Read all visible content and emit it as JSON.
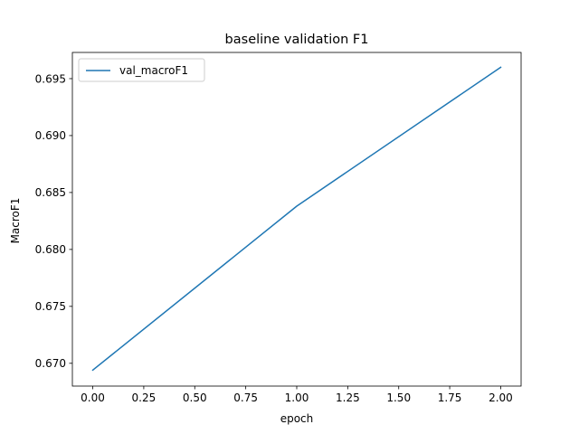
{
  "chart_data": {
    "type": "line",
    "title": "baseline validation F1",
    "xlabel": "epoch",
    "ylabel": "MacroF1",
    "xlim": [
      -0.1,
      2.1
    ],
    "ylim": [
      0.668,
      0.6973
    ],
    "xticks": [
      0.0,
      0.25,
      0.5,
      0.75,
      1.0,
      1.25,
      1.5,
      1.75,
      2.0
    ],
    "xtick_labels": [
      "0.00",
      "0.25",
      "0.50",
      "0.75",
      "1.00",
      "1.25",
      "1.50",
      "1.75",
      "2.00"
    ],
    "yticks": [
      0.67,
      0.675,
      0.68,
      0.685,
      0.69,
      0.695
    ],
    "ytick_labels": [
      "0.670",
      "0.675",
      "0.680",
      "0.685",
      "0.690",
      "0.695"
    ],
    "grid": false,
    "legend_position": "upper-left",
    "series": [
      {
        "name": "val_macroF1",
        "color": "#1f77b4",
        "x": [
          0,
          1,
          2
        ],
        "y": [
          0.6694,
          0.6838,
          0.696
        ]
      }
    ]
  }
}
